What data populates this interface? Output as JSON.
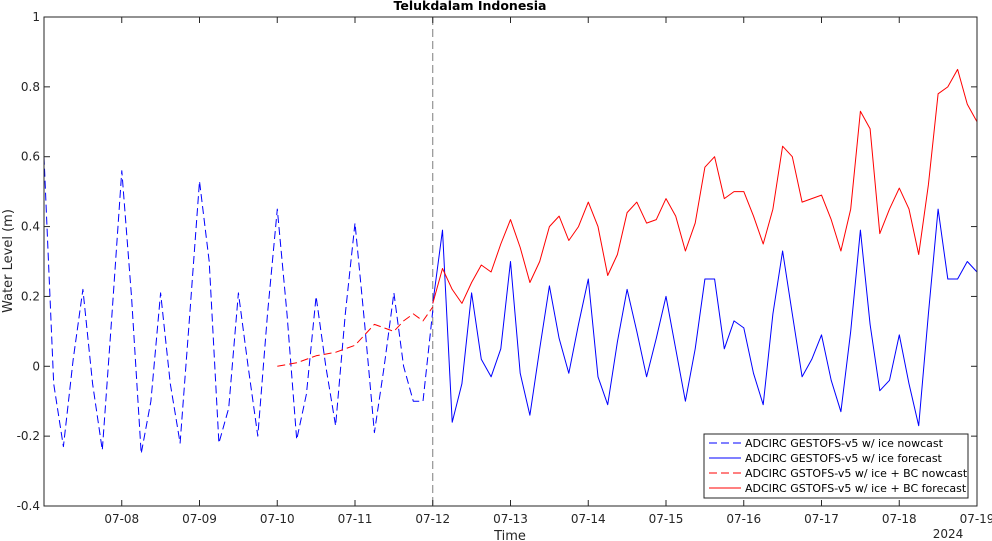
{
  "chart_data": {
    "type": "line",
    "title": "Telukdalam Indonesia",
    "xlabel": "Time",
    "ylabel": "Water Level (m)",
    "year_label": "2024",
    "xlim": [
      "07-07 00:00",
      "07-19 00:00"
    ],
    "ylim": [
      -0.4,
      1
    ],
    "y_ticks": [
      "-0.4",
      "-0.2",
      "0",
      "0.2",
      "0.4",
      "0.6",
      "0.8",
      "1"
    ],
    "x_ticks": [
      "07-08",
      "07-09",
      "07-10",
      "07-11",
      "07-12",
      "07-13",
      "07-14",
      "07-15",
      "07-16",
      "07-17",
      "07-18",
      "07-19"
    ],
    "nowcast_forecast_divider": "07-12 00:00",
    "grid": false,
    "legend_position": "bottom-right",
    "series": [
      {
        "name": "ADCIRC GESTOFS-v5 w/ ice nowcast",
        "color": "#0000ff",
        "dash": "dashed",
        "x": [
          "07-07 00:00",
          "07-07 03:00",
          "07-07 06:00",
          "07-07 09:00",
          "07-07 12:00",
          "07-07 15:00",
          "07-07 18:00",
          "07-07 21:00",
          "07-08 00:00",
          "07-08 03:00",
          "07-08 06:00",
          "07-08 09:00",
          "07-08 12:00",
          "07-08 15:00",
          "07-08 18:00",
          "07-08 21:00",
          "07-09 00:00",
          "07-09 03:00",
          "07-09 06:00",
          "07-09 09:00",
          "07-09 12:00",
          "07-09 15:00",
          "07-09 18:00",
          "07-09 21:00",
          "07-10 00:00",
          "07-10 03:00",
          "07-10 06:00",
          "07-10 09:00",
          "07-10 12:00",
          "07-10 15:00",
          "07-10 18:00",
          "07-10 21:00",
          "07-11 00:00",
          "07-11 03:00",
          "07-11 06:00",
          "07-11 09:00",
          "07-11 12:00",
          "07-11 15:00",
          "07-11 18:00",
          "07-11 21:00",
          "07-12 00:00"
        ],
        "y": [
          0.6,
          -0.05,
          -0.23,
          0.02,
          0.22,
          -0.05,
          -0.24,
          0.15,
          0.56,
          0.2,
          -0.25,
          -0.1,
          0.21,
          -0.05,
          -0.22,
          0.15,
          0.53,
          0.3,
          -0.22,
          -0.12,
          0.21,
          0.0,
          -0.2,
          0.15,
          0.45,
          0.15,
          -0.21,
          -0.08,
          0.2,
          0.0,
          -0.17,
          0.15,
          0.41,
          0.12,
          -0.19,
          0.0,
          0.21,
          0.0,
          -0.1,
          -0.1,
          0.16
        ]
      },
      {
        "name": "ADCIRC GESTOFS-v5 w/ ice forecast",
        "color": "#0000ff",
        "dash": "solid",
        "x": [
          "07-12 00:00",
          "07-12 03:00",
          "07-12 06:00",
          "07-12 09:00",
          "07-12 12:00",
          "07-12 15:00",
          "07-12 18:00",
          "07-12 21:00",
          "07-13 00:00",
          "07-13 03:00",
          "07-13 06:00",
          "07-13 09:00",
          "07-13 12:00",
          "07-13 15:00",
          "07-13 18:00",
          "07-13 21:00",
          "07-14 00:00",
          "07-14 03:00",
          "07-14 06:00",
          "07-14 09:00",
          "07-14 12:00",
          "07-14 15:00",
          "07-14 18:00",
          "07-14 21:00",
          "07-15 00:00",
          "07-15 03:00",
          "07-15 06:00",
          "07-15 09:00",
          "07-15 12:00",
          "07-15 15:00",
          "07-15 18:00",
          "07-15 21:00",
          "07-16 00:00",
          "07-16 03:00",
          "07-16 06:00",
          "07-16 09:00",
          "07-16 12:00",
          "07-16 15:00",
          "07-16 18:00",
          "07-16 21:00",
          "07-17 00:00",
          "07-17 03:00",
          "07-17 06:00",
          "07-17 09:00",
          "07-17 12:00",
          "07-17 15:00",
          "07-17 18:00",
          "07-17 21:00",
          "07-18 00:00",
          "07-18 03:00",
          "07-18 06:00",
          "07-18 09:00",
          "07-18 12:00",
          "07-18 15:00",
          "07-18 18:00",
          "07-18 21:00",
          "07-19 00:00"
        ],
        "y": [
          0.18,
          0.39,
          -0.16,
          -0.05,
          0.21,
          0.02,
          -0.03,
          0.05,
          0.3,
          -0.02,
          -0.14,
          0.05,
          0.23,
          0.08,
          -0.02,
          0.12,
          0.25,
          -0.03,
          -0.11,
          0.07,
          0.22,
          0.1,
          -0.03,
          0.08,
          0.2,
          0.05,
          -0.1,
          0.05,
          0.25,
          0.25,
          0.05,
          0.13,
          0.11,
          -0.02,
          -0.11,
          0.15,
          0.33,
          0.15,
          -0.03,
          0.02,
          0.09,
          -0.04,
          -0.13,
          0.1,
          0.39,
          0.12,
          -0.07,
          -0.04,
          0.09,
          -0.05,
          -0.17,
          0.15,
          0.45,
          0.25,
          0.25,
          0.3,
          0.27
        ]
      },
      {
        "name": "ADCIRC GSTOFS-v5 w/ ice + BC nowcast",
        "color": "#ff0000",
        "dash": "dashed",
        "x": [
          "07-10 00:00",
          "07-10 06:00",
          "07-10 12:00",
          "07-10 18:00",
          "07-11 00:00",
          "07-11 06:00",
          "07-11 09:00",
          "07-11 12:00",
          "07-11 15:00",
          "07-11 18:00",
          "07-11 21:00",
          "07-12 00:00"
        ],
        "y": [
          0.0,
          0.01,
          0.03,
          0.04,
          0.06,
          0.12,
          0.11,
          0.1,
          0.13,
          0.15,
          0.13,
          0.17
        ]
      },
      {
        "name": "ADCIRC GSTOFS-v5 w/ ice + BC forecast",
        "color": "#ff0000",
        "dash": "solid",
        "x": [
          "07-12 00:00",
          "07-12 03:00",
          "07-12 06:00",
          "07-12 09:00",
          "07-12 12:00",
          "07-12 15:00",
          "07-12 18:00",
          "07-12 21:00",
          "07-13 00:00",
          "07-13 03:00",
          "07-13 06:00",
          "07-13 09:00",
          "07-13 12:00",
          "07-13 15:00",
          "07-13 18:00",
          "07-13 21:00",
          "07-14 00:00",
          "07-14 03:00",
          "07-14 06:00",
          "07-14 09:00",
          "07-14 12:00",
          "07-14 15:00",
          "07-14 18:00",
          "07-14 21:00",
          "07-15 00:00",
          "07-15 03:00",
          "07-15 06:00",
          "07-15 09:00",
          "07-15 12:00",
          "07-15 15:00",
          "07-15 18:00",
          "07-15 21:00",
          "07-16 00:00",
          "07-16 03:00",
          "07-16 06:00",
          "07-16 09:00",
          "07-16 12:00",
          "07-16 15:00",
          "07-16 18:00",
          "07-16 21:00",
          "07-17 00:00",
          "07-17 03:00",
          "07-17 06:00",
          "07-17 09:00",
          "07-17 12:00",
          "07-17 15:00",
          "07-17 18:00",
          "07-17 21:00",
          "07-18 00:00",
          "07-18 03:00",
          "07-18 06:00",
          "07-18 09:00",
          "07-18 12:00",
          "07-18 15:00",
          "07-18 18:00",
          "07-18 21:00",
          "07-19 00:00"
        ],
        "y": [
          0.18,
          0.28,
          0.22,
          0.18,
          0.24,
          0.29,
          0.27,
          0.35,
          0.42,
          0.34,
          0.24,
          0.3,
          0.4,
          0.43,
          0.36,
          0.4,
          0.47,
          0.4,
          0.26,
          0.32,
          0.44,
          0.47,
          0.41,
          0.42,
          0.48,
          0.43,
          0.33,
          0.41,
          0.57,
          0.6,
          0.48,
          0.5,
          0.5,
          0.43,
          0.35,
          0.45,
          0.63,
          0.6,
          0.47,
          0.48,
          0.49,
          0.42,
          0.33,
          0.45,
          0.73,
          0.68,
          0.38,
          0.45,
          0.51,
          0.45,
          0.32,
          0.52,
          0.78,
          0.8,
          0.85,
          0.75,
          0.7
        ]
      }
    ]
  }
}
